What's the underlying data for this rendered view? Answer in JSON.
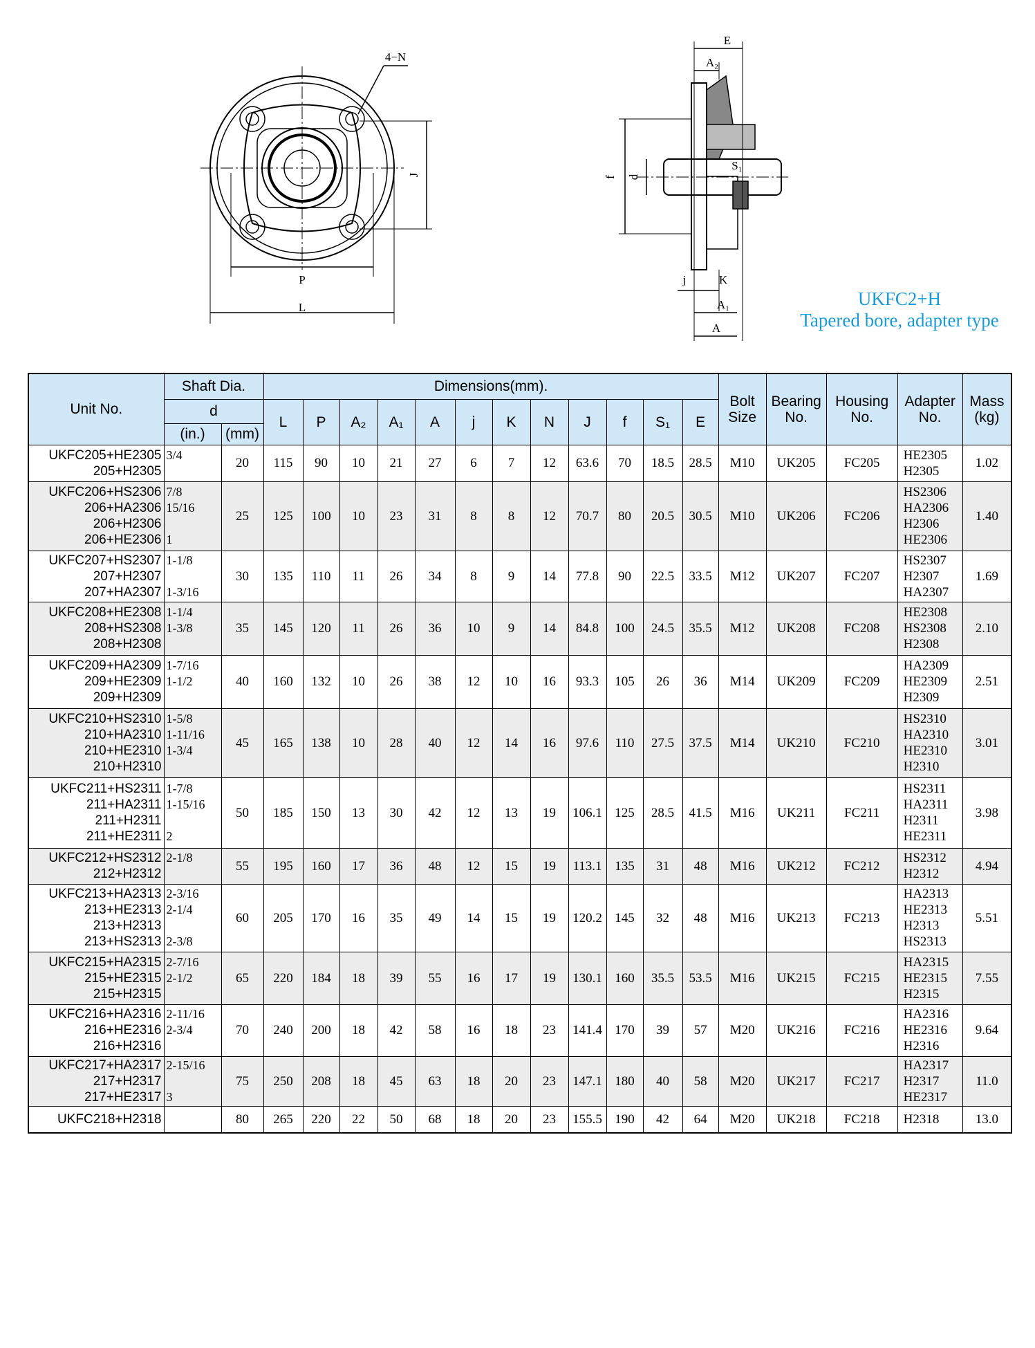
{
  "drawing": {
    "front_labels": [
      "4−N",
      "J",
      "P",
      "L"
    ],
    "side_labels": [
      "E",
      "A₂",
      "f",
      "d",
      "S₁",
      "j",
      "K",
      "A₁",
      "A"
    ],
    "title": "UKFC2+H",
    "subtitle": "Tapered bore, adapter type"
  },
  "table": {
    "header": {
      "unit": "Unit No.",
      "shaft": "Shaft Dia.",
      "d": "d",
      "inch": "(in.)",
      "mm": "(mm)",
      "dims": "Dimensions(mm).",
      "dim_cols": [
        "L",
        "P",
        "A₂",
        "A₁",
        "A",
        "j",
        "K",
        "N",
        "J",
        "f",
        "S₁",
        "E"
      ],
      "bolt": [
        "Bolt",
        "Size"
      ],
      "bearing": [
        "Bearing",
        "No."
      ],
      "housing": [
        "Housing",
        "No."
      ],
      "adapter": [
        "Adapter",
        "No."
      ],
      "mass": [
        "Mass",
        "(kg)"
      ]
    },
    "rows": [
      {
        "unit": [
          "UKFC205+HE2305",
          "205+H2305"
        ],
        "inch": [
          "3/4",
          null
        ],
        "mm": "20",
        "dims": [
          "115",
          "90",
          "10",
          "21",
          "27",
          "6",
          "7",
          "12",
          "63.6",
          "70",
          "18.5",
          "28.5"
        ],
        "bolt": "M10",
        "bearing": "UK205",
        "housing": "FC205",
        "adapter": [
          "HE2305",
          "H2305"
        ],
        "mass": "1.02"
      },
      {
        "unit": [
          "UKFC206+HS2306",
          "206+HA2306",
          "206+H2306",
          "206+HE2306"
        ],
        "inch": [
          "7/8",
          "15/16",
          null,
          "1"
        ],
        "mm": "25",
        "dims": [
          "125",
          "100",
          "10",
          "23",
          "31",
          "8",
          "8",
          "12",
          "70.7",
          "80",
          "20.5",
          "30.5"
        ],
        "bolt": "M10",
        "bearing": "UK206",
        "housing": "FC206",
        "adapter": [
          "HS2306",
          "HA2306",
          "H2306",
          "HE2306"
        ],
        "mass": "1.40"
      },
      {
        "unit": [
          "UKFC207+HS2307",
          "207+H2307",
          "207+HA2307"
        ],
        "inch": [
          "1-1/8",
          null,
          "1-3/16"
        ],
        "mm": "30",
        "dims": [
          "135",
          "110",
          "11",
          "26",
          "34",
          "8",
          "9",
          "14",
          "77.8",
          "90",
          "22.5",
          "33.5"
        ],
        "bolt": "M12",
        "bearing": "UK207",
        "housing": "FC207",
        "adapter": [
          "HS2307",
          "H2307",
          "HA2307"
        ],
        "mass": "1.69"
      },
      {
        "unit": [
          "UKFC208+HE2308",
          "208+HS2308",
          "208+H2308"
        ],
        "inch": [
          "1-1/4",
          "1-3/8",
          null
        ],
        "mm": "35",
        "dims": [
          "145",
          "120",
          "11",
          "26",
          "36",
          "10",
          "9",
          "14",
          "84.8",
          "100",
          "24.5",
          "35.5"
        ],
        "bolt": "M12",
        "bearing": "UK208",
        "housing": "FC208",
        "adapter": [
          "HE2308",
          "HS2308",
          "H2308"
        ],
        "mass": "2.10"
      },
      {
        "unit": [
          "UKFC209+HA2309",
          "209+HE2309",
          "209+H2309"
        ],
        "inch": [
          "1-7/16",
          "1-1/2",
          null
        ],
        "mm": "40",
        "dims": [
          "160",
          "132",
          "10",
          "26",
          "38",
          "12",
          "10",
          "16",
          "93.3",
          "105",
          "26",
          "36"
        ],
        "bolt": "M14",
        "bearing": "UK209",
        "housing": "FC209",
        "adapter": [
          "HA2309",
          "HE2309",
          "H2309"
        ],
        "mass": "2.51"
      },
      {
        "unit": [
          "UKFC210+HS2310",
          "210+HA2310",
          "210+HE2310",
          "210+H2310"
        ],
        "inch": [
          "1-5/8",
          "1-11/16",
          "1-3/4",
          null
        ],
        "mm": "45",
        "dims": [
          "165",
          "138",
          "10",
          "28",
          "40",
          "12",
          "14",
          "16",
          "97.6",
          "110",
          "27.5",
          "37.5"
        ],
        "bolt": "M14",
        "bearing": "UK210",
        "housing": "FC210",
        "adapter": [
          "HS2310",
          "HA2310",
          "HE2310",
          "H2310"
        ],
        "mass": "3.01"
      },
      {
        "unit": [
          "UKFC211+HS2311",
          "211+HA2311",
          "211+H2311",
          "211+HE2311"
        ],
        "inch": [
          "1-7/8",
          "1-15/16",
          null,
          "2"
        ],
        "mm": "50",
        "dims": [
          "185",
          "150",
          "13",
          "30",
          "42",
          "12",
          "13",
          "19",
          "106.1",
          "125",
          "28.5",
          "41.5"
        ],
        "bolt": "M16",
        "bearing": "UK211",
        "housing": "FC211",
        "adapter": [
          "HS2311",
          "HA2311",
          "H2311",
          "HE2311"
        ],
        "mass": "3.98"
      },
      {
        "unit": [
          "UKFC212+HS2312",
          "212+H2312"
        ],
        "inch": [
          "2-1/8",
          null
        ],
        "mm": "55",
        "dims": [
          "195",
          "160",
          "17",
          "36",
          "48",
          "12",
          "15",
          "19",
          "113.1",
          "135",
          "31",
          "48"
        ],
        "bolt": "M16",
        "bearing": "UK212",
        "housing": "FC212",
        "adapter": [
          "HS2312",
          "H2312"
        ],
        "mass": "4.94"
      },
      {
        "unit": [
          "UKFC213+HA2313",
          "213+HE2313",
          "213+H2313",
          "213+HS2313"
        ],
        "inch": [
          "2-3/16",
          "2-1/4",
          null,
          "2-3/8"
        ],
        "mm": "60",
        "dims": [
          "205",
          "170",
          "16",
          "35",
          "49",
          "14",
          "15",
          "19",
          "120.2",
          "145",
          "32",
          "48"
        ],
        "bolt": "M16",
        "bearing": "UK213",
        "housing": "FC213",
        "adapter": [
          "HA2313",
          "HE2313",
          "H2313",
          "HS2313"
        ],
        "mass": "5.51"
      },
      {
        "unit": [
          "UKFC215+HA2315",
          "215+HE2315",
          "215+H2315"
        ],
        "inch": [
          "2-7/16",
          "2-1/2",
          null
        ],
        "mm": "65",
        "dims": [
          "220",
          "184",
          "18",
          "39",
          "55",
          "16",
          "17",
          "19",
          "130.1",
          "160",
          "35.5",
          "53.5"
        ],
        "bolt": "M16",
        "bearing": "UK215",
        "housing": "FC215",
        "adapter": [
          "HA2315",
          "HE2315",
          "H2315"
        ],
        "mass": "7.55"
      },
      {
        "unit": [
          "UKFC216+HA2316",
          "216+HE2316",
          "216+H2316"
        ],
        "inch": [
          "2-11/16",
          "2-3/4",
          null
        ],
        "mm": "70",
        "dims": [
          "240",
          "200",
          "18",
          "42",
          "58",
          "16",
          "18",
          "23",
          "141.4",
          "170",
          "39",
          "57"
        ],
        "bolt": "M20",
        "bearing": "UK216",
        "housing": "FC216",
        "adapter": [
          "HA2316",
          "HE2316",
          "H2316"
        ],
        "mass": "9.64"
      },
      {
        "unit": [
          "UKFC217+HA2317",
          "217+H2317",
          "217+HE2317"
        ],
        "inch": [
          "2-15/16",
          null,
          "3"
        ],
        "mm": "75",
        "dims": [
          "250",
          "208",
          "18",
          "45",
          "63",
          "18",
          "20",
          "23",
          "147.1",
          "180",
          "40",
          "58"
        ],
        "bolt": "M20",
        "bearing": "UK217",
        "housing": "FC217",
        "adapter": [
          "HA2317",
          "H2317",
          "HE2317"
        ],
        "mass": "11.0"
      },
      {
        "unit": [
          "UKFC218+H2318"
        ],
        "inch": [
          null
        ],
        "mm": "80",
        "dims": [
          "265",
          "220",
          "22",
          "50",
          "68",
          "18",
          "20",
          "23",
          "155.5",
          "190",
          "42",
          "64"
        ],
        "bolt": "M20",
        "bearing": "UK218",
        "housing": "FC218",
        "adapter": [
          "H2318"
        ],
        "mass": "13.0"
      }
    ]
  }
}
